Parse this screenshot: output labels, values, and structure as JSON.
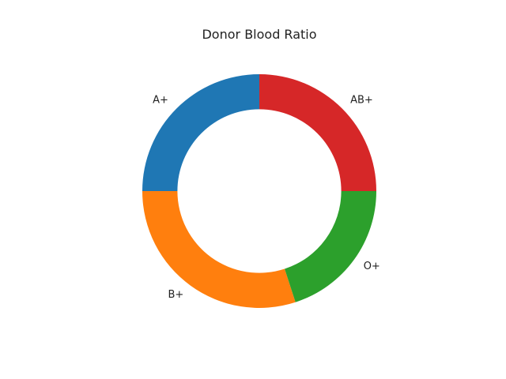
{
  "chart_data": {
    "type": "pie",
    "donut": true,
    "title": "Donor Blood Ratio",
    "labels": [
      "A+",
      "B+",
      "O+",
      "AB+"
    ],
    "values": [
      25,
      30,
      20,
      25
    ],
    "colors": [
      "#1f77b4",
      "#ff7f0e",
      "#2ca02c",
      "#d62728"
    ],
    "start_angle_deg": 90,
    "direction": "counterclockwise",
    "legend": "none"
  }
}
